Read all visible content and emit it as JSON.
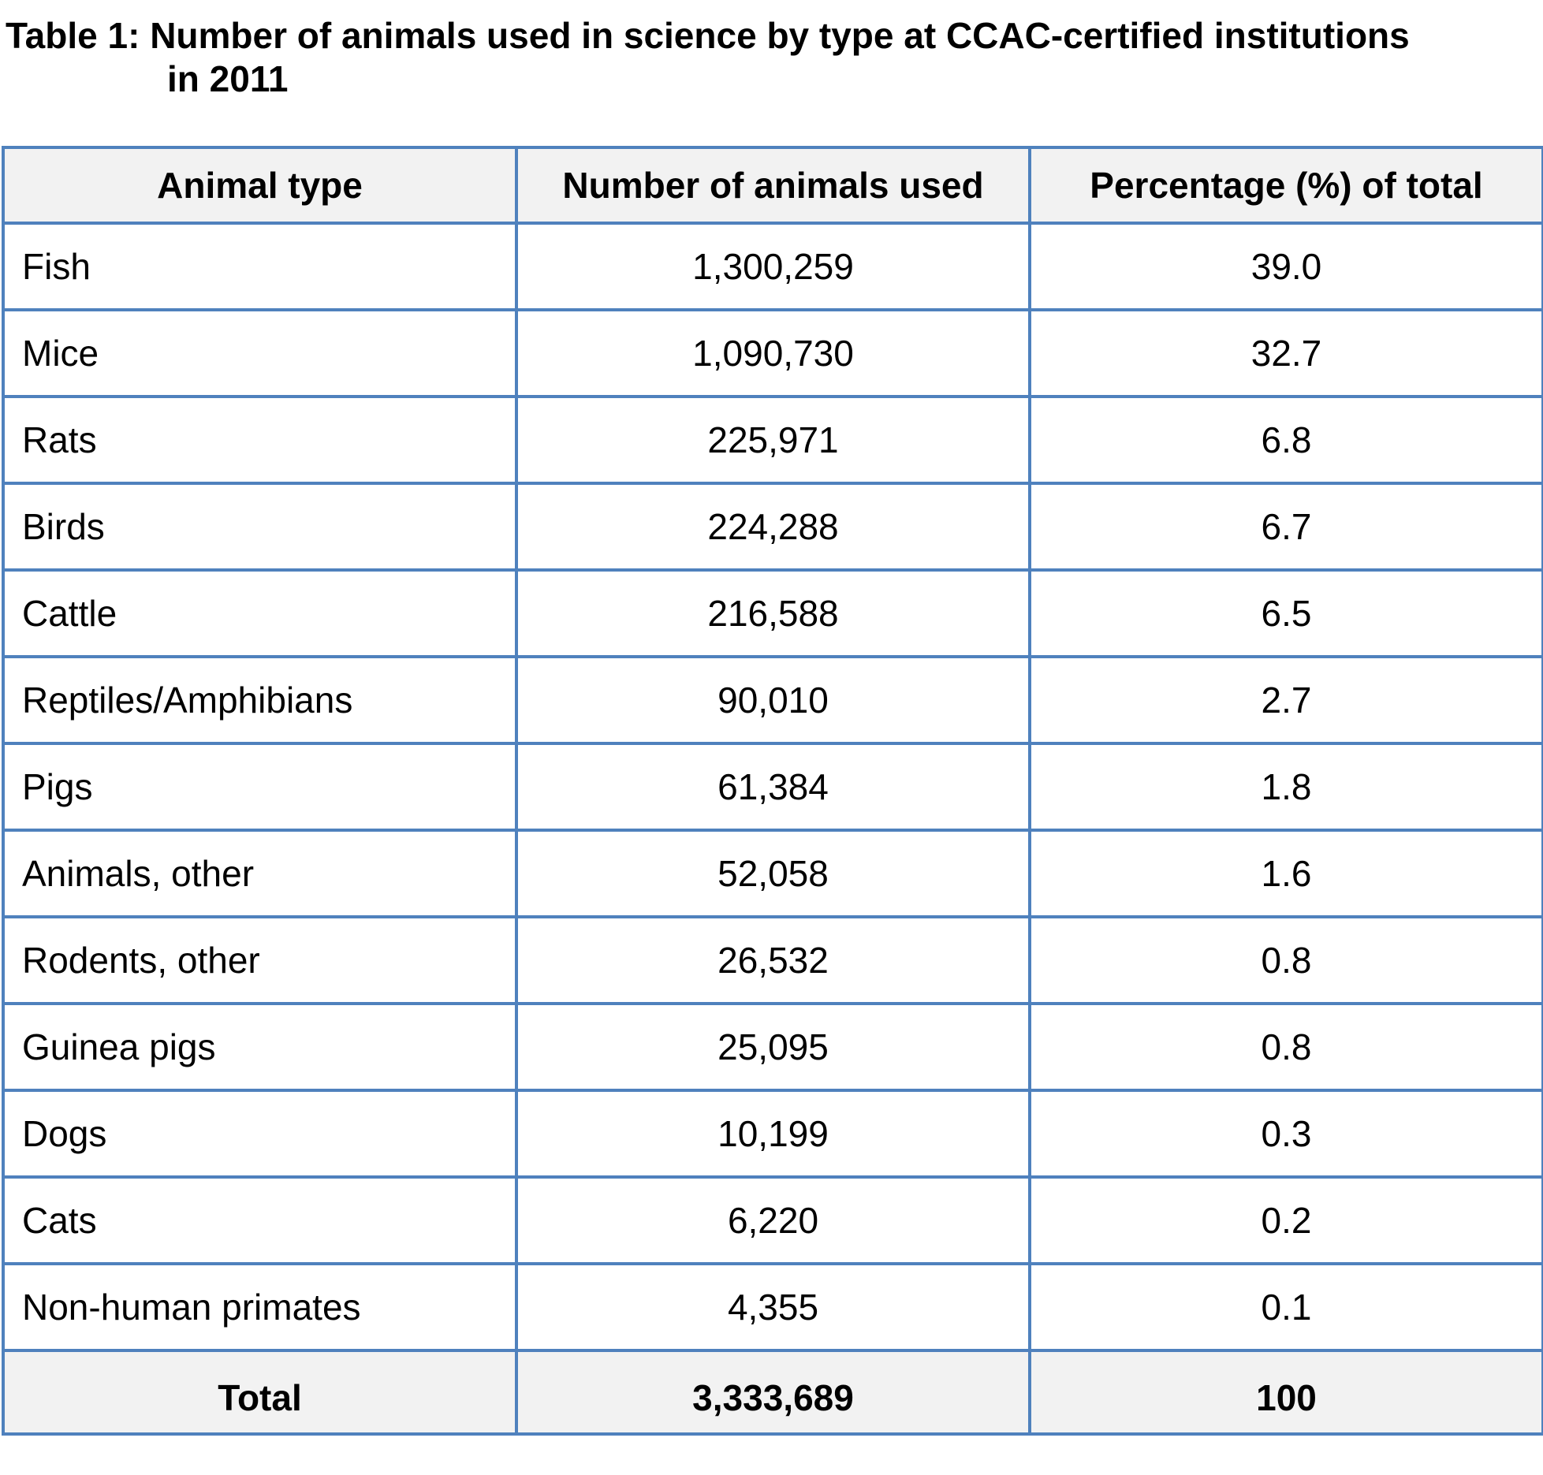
{
  "caption": {
    "line1": "Table 1: Number of animals used in science by type at CCAC-certified institutions",
    "line2": "in 2011"
  },
  "table": {
    "headers": [
      "Animal type",
      "Number of animals used",
      "Percentage (%) of total"
    ],
    "rows": [
      {
        "type": "Fish",
        "number": "1,300,259",
        "percent": "39.0"
      },
      {
        "type": "Mice",
        "number": "1,090,730",
        "percent": "32.7"
      },
      {
        "type": "Rats",
        "number": "225,971",
        "percent": "6.8"
      },
      {
        "type": "Birds",
        "number": "224,288",
        "percent": "6.7"
      },
      {
        "type": "Cattle",
        "number": "216,588",
        "percent": "6.5"
      },
      {
        "type": "Reptiles/Amphibians",
        "number": "90,010",
        "percent": "2.7"
      },
      {
        "type": "Pigs",
        "number": "61,384",
        "percent": "1.8"
      },
      {
        "type": "Animals, other",
        "number": "52,058",
        "percent": "1.6"
      },
      {
        "type": "Rodents, other",
        "number": "26,532",
        "percent": "0.8"
      },
      {
        "type": "Guinea pigs",
        "number": "25,095",
        "percent": "0.8"
      },
      {
        "type": "Dogs",
        "number": "10,199",
        "percent": "0.3"
      },
      {
        "type": "Cats",
        "number": "6,220",
        "percent": "0.2"
      },
      {
        "type": "Non-human primates",
        "number": "4,355",
        "percent": "0.1"
      }
    ],
    "total": {
      "label": "Total",
      "number": "3,333,689",
      "percent": "100"
    }
  },
  "colors": {
    "border": "#4f81bd",
    "header_background": "#f2f2f2"
  }
}
